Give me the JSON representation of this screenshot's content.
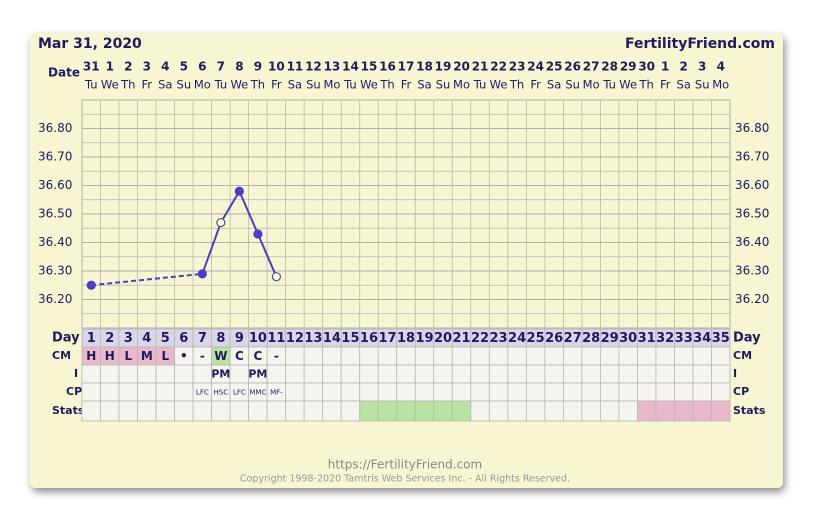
{
  "header": {
    "title": "Mar 31, 2020",
    "brand": "FertilityFriend.com"
  },
  "chart_data": {
    "type": "line",
    "date_label": "Date",
    "dates": [
      31,
      1,
      2,
      3,
      4,
      5,
      6,
      7,
      8,
      9,
      10,
      11,
      12,
      13,
      14,
      15,
      16,
      17,
      18,
      19,
      20,
      21,
      22,
      23,
      24,
      25,
      26,
      27,
      28,
      29,
      30,
      1,
      2,
      3,
      4
    ],
    "weekdays": [
      "Tu",
      "We",
      "Th",
      "Fr",
      "Sa",
      "Su",
      "Mo",
      "Tu",
      "We",
      "Th",
      "Fr",
      "Sa",
      "Su",
      "Mo",
      "Tu",
      "We",
      "Th",
      "Fr",
      "Sa",
      "Su",
      "Mo",
      "Tu",
      "We",
      "Th",
      "Fr",
      "Sa",
      "Su",
      "Mo",
      "Tu",
      "We",
      "Th",
      "Fr",
      "Sa",
      "Su",
      "Mo"
    ],
    "x": [
      1,
      7,
      8,
      9,
      10,
      11
    ],
    "values": [
      36.25,
      36.29,
      36.47,
      36.58,
      36.43,
      36.28
    ],
    "open_markers": [
      false,
      false,
      true,
      false,
      false,
      true
    ],
    "color": "#4a3fc4",
    "xlim": [
      0.5,
      35.5
    ],
    "ylim": [
      36.1,
      36.9
    ],
    "yticks": [
      {
        "value": 36.2,
        "label": "36.20"
      },
      {
        "value": 36.3,
        "label": "36.30"
      },
      {
        "value": 36.4,
        "label": "36.40"
      },
      {
        "value": 36.5,
        "label": "36.50"
      },
      {
        "value": 36.6,
        "label": "36.60"
      },
      {
        "value": 36.7,
        "label": "36.70"
      },
      {
        "value": 36.8,
        "label": "36.80"
      }
    ],
    "grid": true
  },
  "table": {
    "day_label": "Day",
    "cm_label": "CM",
    "i_label": "I",
    "cp_label": "CP",
    "stats_label": "Stats",
    "days": [
      1,
      2,
      3,
      4,
      5,
      6,
      7,
      8,
      9,
      10,
      11,
      12,
      13,
      14,
      15,
      16,
      17,
      18,
      19,
      20,
      21,
      22,
      23,
      24,
      25,
      26,
      27,
      28,
      29,
      30,
      31,
      32,
      33,
      34,
      35
    ],
    "cm": [
      "H",
      "H",
      "L",
      "M",
      "L",
      "•",
      "-",
      "W",
      "C",
      "C",
      "-",
      null,
      null,
      null,
      null,
      null,
      null,
      null,
      null,
      null,
      null,
      null,
      null,
      null,
      null,
      null,
      null,
      null,
      null,
      null,
      null,
      null,
      null,
      null,
      null
    ],
    "cm_colors": [
      "#e9b8cc",
      "#e9b8cc",
      "#e9b8cc",
      "#e9b8cc",
      "#e9b8cc",
      null,
      null,
      "#b9e3a0",
      null,
      null,
      null,
      null,
      null,
      null,
      null,
      null,
      null,
      null,
      null,
      null,
      null,
      null,
      null,
      null,
      null,
      null,
      null,
      null,
      null,
      null,
      null,
      null,
      null,
      null,
      null
    ],
    "i": [
      null,
      null,
      null,
      null,
      null,
      null,
      null,
      "PM",
      null,
      "PM",
      null,
      null,
      null,
      null,
      null,
      null,
      null,
      null,
      null,
      null,
      null,
      null,
      null,
      null,
      null,
      null,
      null,
      null,
      null,
      null,
      null,
      null,
      null,
      null,
      null
    ],
    "cp": [
      null,
      null,
      null,
      null,
      null,
      null,
      "LFC",
      "HSC",
      "LFC",
      "MMC",
      "MF-",
      null,
      null,
      null,
      null,
      null,
      null,
      null,
      null,
      null,
      null,
      null,
      null,
      null,
      null,
      null,
      null,
      null,
      null,
      null,
      null,
      null,
      null,
      null,
      null
    ],
    "stats_colors": [
      null,
      null,
      null,
      null,
      null,
      null,
      null,
      null,
      null,
      null,
      null,
      null,
      null,
      null,
      null,
      "#b9e3a0",
      "#b9e3a0",
      "#b9e3a0",
      "#b9e3a0",
      "#b9e3a0",
      "#b9e3a0",
      null,
      null,
      null,
      null,
      null,
      null,
      null,
      null,
      null,
      "#e9b8cc",
      "#e9b8cc",
      "#e9b8cc",
      "#e9b8cc",
      "#e9b8cc"
    ]
  },
  "footer": {
    "url": "https://FertilityFriend.com",
    "copyright": "Copyright 1998-2020 Tamtris Web Services Inc. - All Rights Reserved."
  }
}
